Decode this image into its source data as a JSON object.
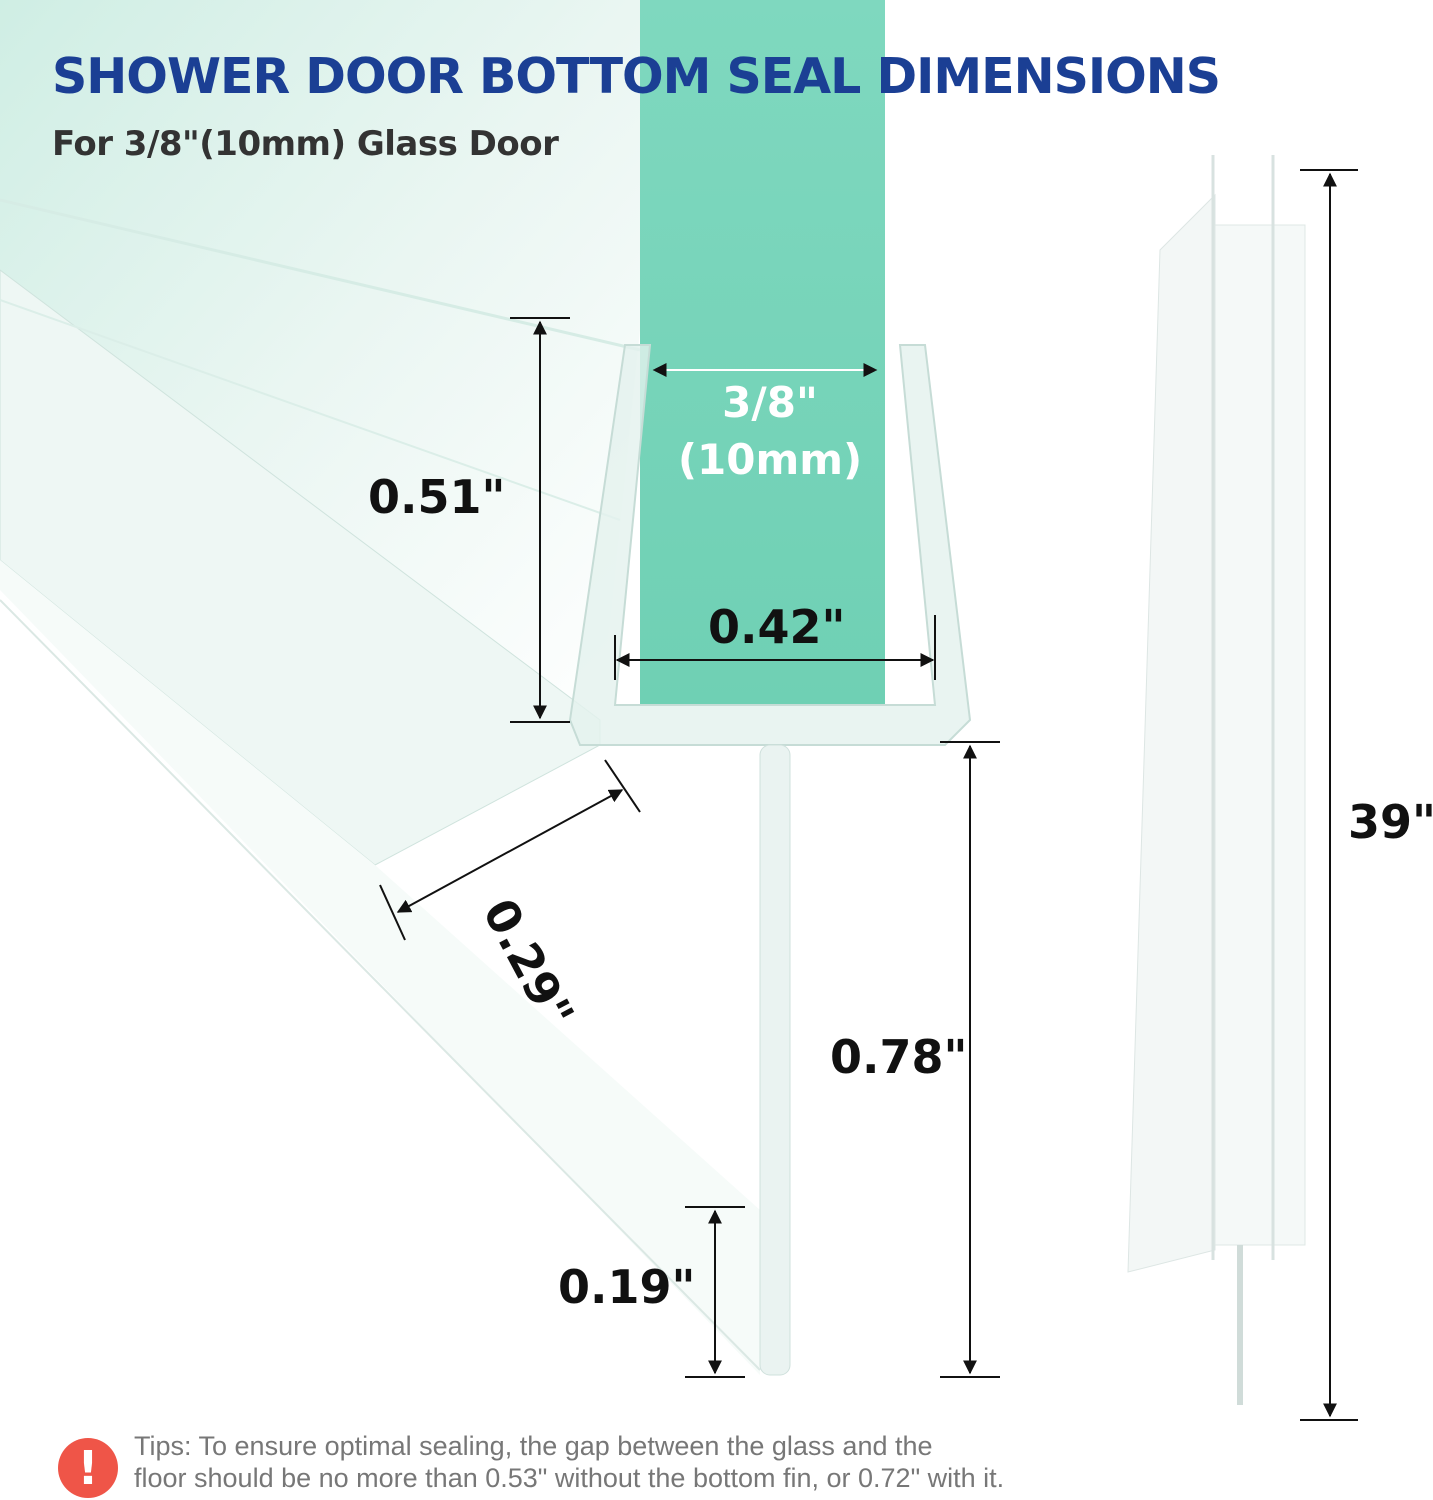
{
  "header": {
    "title": "SHOWER DOOR BOTTOM SEAL DIMENSIONS",
    "subtitle": "For 3/8\"(10mm) Glass Door"
  },
  "dimensions": {
    "glass_thickness": "3/8\"",
    "glass_thickness_mm": "(10mm)",
    "channel_height": "0.51\"",
    "channel_inner_width": "0.42\"",
    "flap_width": "0.29\"",
    "fin_height": "0.78\"",
    "fin_tip": "0.19\"",
    "length": "39\""
  },
  "tips": {
    "icon": "exclamation-icon",
    "line1": "Tips: To ensure optimal sealing, the gap between the glass and the",
    "line2": "floor should be no more than 0.53\" without the bottom fin, or 0.72\" with it."
  },
  "colors": {
    "title": "#1b3f94",
    "glass": "#7fd8bf",
    "alert": "#ef5548"
  }
}
